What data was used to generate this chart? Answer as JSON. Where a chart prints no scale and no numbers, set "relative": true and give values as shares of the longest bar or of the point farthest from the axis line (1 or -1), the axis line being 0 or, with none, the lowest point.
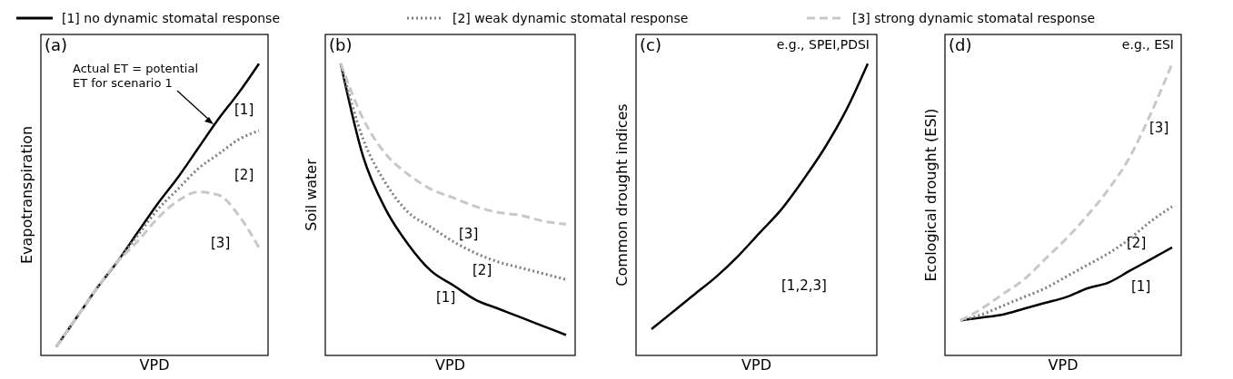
{
  "chart_data": [
    {
      "type": "line",
      "title": "(a)",
      "xlabel": "VPD",
      "ylabel": "Evapotranspiration",
      "relative": true,
      "legend": "top",
      "categories": [
        null,
        null,
        null,
        null,
        null,
        null,
        null,
        null,
        null,
        null,
        null
      ],
      "series": [
        {
          "name": "[1] no dynamic stomatal response",
          "color": "#000000",
          "line_style": "solid",
          "values": [
            0.03,
            0.13,
            0.23,
            0.32,
            0.42,
            0.52,
            0.61,
            0.71,
            0.81,
            0.9,
            1
          ]
        },
        {
          "name": "[2] weak dynamic stomatal response",
          "color": "#7f7f7f",
          "line_style": "dotted",
          "values": [
            0.03,
            0.13,
            0.23,
            0.32,
            0.41,
            0.5,
            0.57,
            0.64,
            0.69,
            0.74,
            0.77
          ]
        },
        {
          "name": "[3] strong dynamic stomatal response",
          "color": "#c8c8c8",
          "line_style": "dashed",
          "values": [
            0.03,
            0.13,
            0.23,
            0.32,
            0.39,
            0.47,
            0.53,
            0.56,
            0.55,
            0.48,
            0.37
          ]
        }
      ],
      "annotations": [
        "Actual ET = potential\nET for scenario 1",
        "[1]",
        "[2]",
        "[3]"
      ]
    },
    {
      "type": "line",
      "title": "(b)",
      "xlabel": "VPD",
      "ylabel": "Soil water",
      "relative": true,
      "categories": [
        null,
        null,
        null,
        null,
        null,
        null,
        null,
        null,
        null,
        null,
        null
      ],
      "series": [
        {
          "color": "#000000",
          "line_style": "solid",
          "values": [
            1,
            0.68,
            0.5,
            0.38,
            0.29,
            0.24,
            0.19,
            0.16,
            0.13,
            0.1,
            0.07
          ]
        },
        {
          "color": "#7f7f7f",
          "line_style": "dotted",
          "values": [
            1,
            0.74,
            0.59,
            0.49,
            0.44,
            0.39,
            0.35,
            0.32,
            0.3,
            0.28,
            0.26
          ]
        },
        {
          "color": "#c8c8c8",
          "line_style": "dashed",
          "values": [
            1,
            0.81,
            0.69,
            0.62,
            0.57,
            0.54,
            0.51,
            0.49,
            0.48,
            0.46,
            0.45
          ]
        }
      ],
      "annotations": [
        "[3]",
        "[2]",
        "[1]"
      ]
    },
    {
      "type": "line",
      "title": "(c)",
      "subtitle": "e.g., SPEI,PDSI",
      "xlabel": "VPD",
      "ylabel": "Common drought indices",
      "relative": true,
      "categories": [
        null,
        null,
        null,
        null,
        null,
        null,
        null,
        null,
        null,
        null,
        null
      ],
      "series": [
        {
          "color": "#000000",
          "line_style": "solid",
          "values": [
            0.09,
            0.15,
            0.21,
            0.27,
            0.34,
            0.42,
            0.5,
            0.6,
            0.71,
            0.84,
            1
          ]
        }
      ],
      "annotations": [
        "[1,2,3]"
      ]
    },
    {
      "type": "line",
      "title": "(d)",
      "subtitle": "e.g., ESI",
      "xlabel": "VPD",
      "ylabel": "Ecological drought (ESI)",
      "relative": true,
      "categories": [
        null,
        null,
        null,
        null,
        null,
        null,
        null,
        null,
        null,
        null,
        null
      ],
      "series": [
        {
          "color": "#000000",
          "line_style": "solid",
          "values": [
            0.12,
            0.13,
            0.14,
            0.16,
            0.18,
            0.2,
            0.23,
            0.25,
            0.29,
            0.33,
            0.37
          ]
        },
        {
          "color": "#7f7f7f",
          "line_style": "dotted",
          "values": [
            0.12,
            0.14,
            0.17,
            0.2,
            0.23,
            0.27,
            0.31,
            0.35,
            0.4,
            0.46,
            0.51
          ]
        },
        {
          "color": "#c8c8c8",
          "line_style": "dashed",
          "values": [
            0.12,
            0.16,
            0.21,
            0.26,
            0.33,
            0.4,
            0.48,
            0.57,
            0.68,
            0.83,
            1
          ]
        }
      ],
      "annotations": [
        "[3]",
        "[2]",
        "[1]"
      ]
    }
  ]
}
